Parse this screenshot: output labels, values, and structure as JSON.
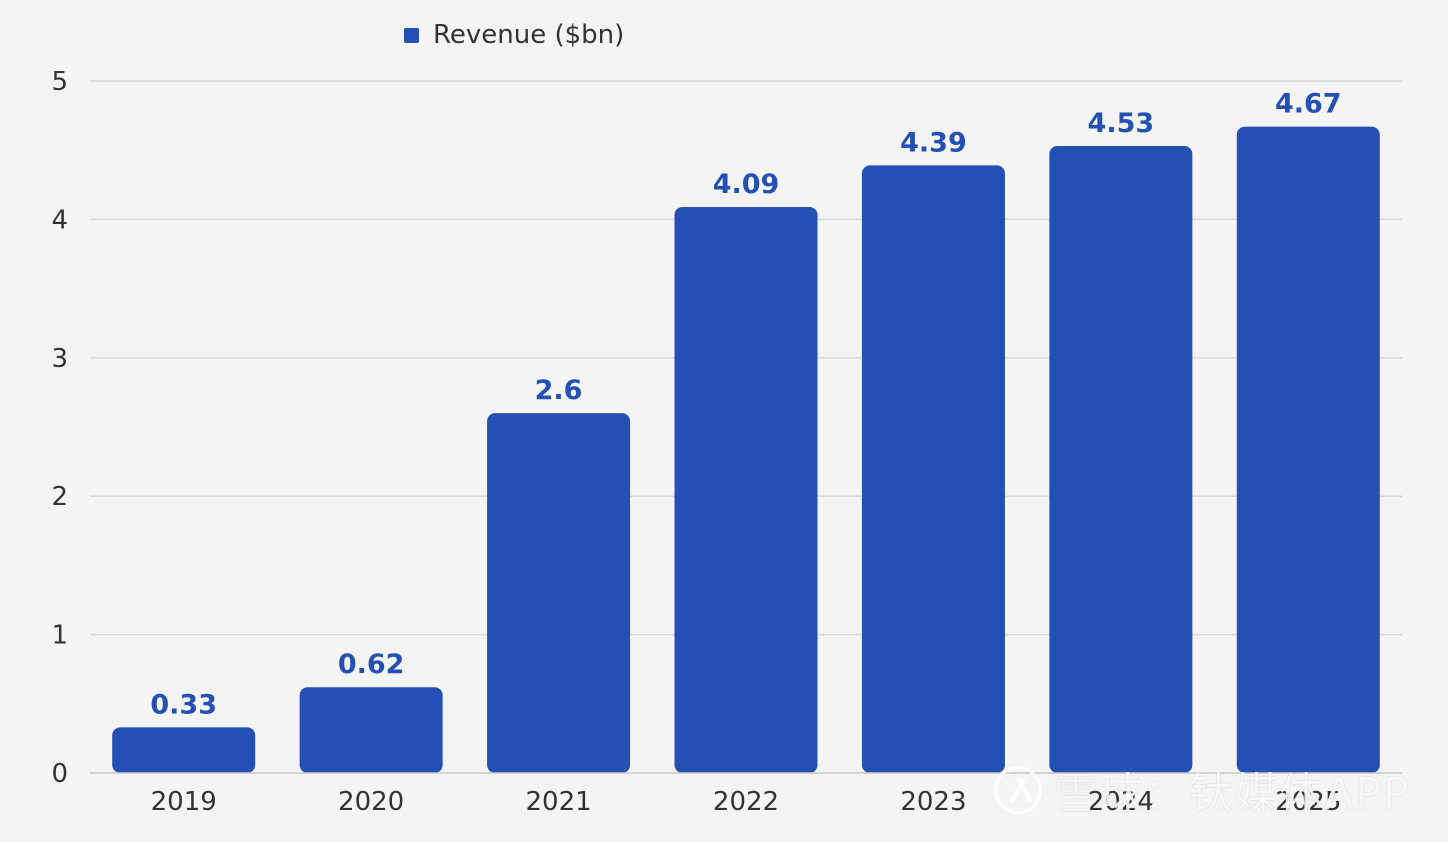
{
  "chart_data": {
    "type": "bar",
    "categories": [
      "2019",
      "2020",
      "2021",
      "2022",
      "2023",
      "2024",
      "2025"
    ],
    "series": [
      {
        "name": "Revenue ($bn)",
        "values": [
          0.33,
          0.62,
          2.6,
          4.09,
          4.39,
          4.53,
          4.67
        ]
      }
    ],
    "ylim": [
      0,
      5
    ],
    "yticks": [
      "0",
      "1",
      "2",
      "3",
      "4",
      "5"
    ],
    "grid": true,
    "legend_position": "top-left",
    "colors": {
      "bar": "#2450b3",
      "data_label": "#2450b3",
      "grid": "#d9d9d9",
      "axis": "#c8c8c8",
      "text": "#333333"
    }
  },
  "watermark": {
    "text": "雪球：钛媒体APP",
    "icon": "watermark-logo-icon"
  }
}
